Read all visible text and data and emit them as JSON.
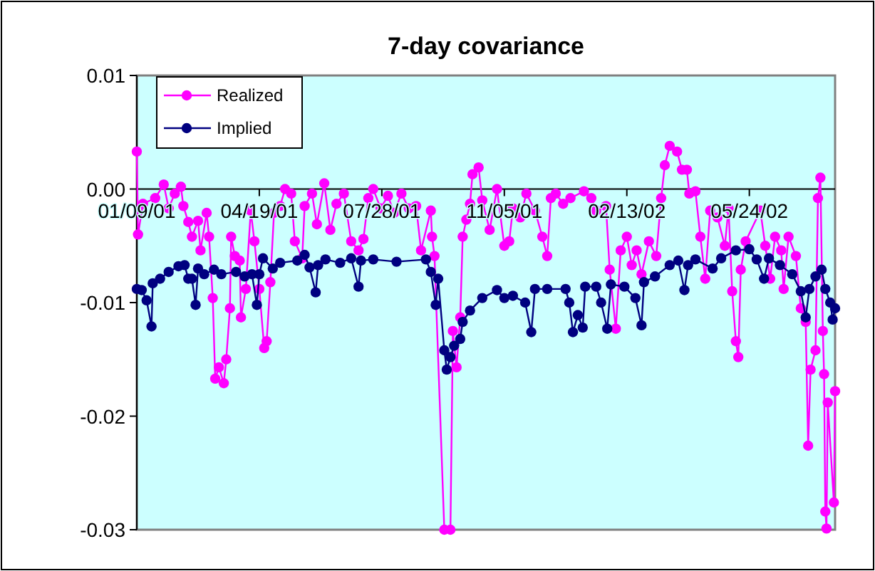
{
  "chart_data": {
    "type": "line",
    "title": "7-day covariance",
    "xlim": [
      "2001-01-09",
      "2002-08-02"
    ],
    "xticks": [
      {
        "value": "2001-01-09",
        "label": "01/09/01"
      },
      {
        "value": "2001-04-19",
        "label": "04/19/01"
      },
      {
        "value": "2001-07-28",
        "label": "07/28/01"
      },
      {
        "value": "2001-11-05",
        "label": "11/05/01"
      },
      {
        "value": "2002-02-13",
        "label": "02/13/02"
      },
      {
        "value": "2002-05-24",
        "label": "05/24/02"
      }
    ],
    "ylim": [
      -0.03,
      0.01
    ],
    "yticks": [
      0.01,
      {
        "value": 0,
        "label": "0.00"
      },
      -0.01,
      -0.02,
      -0.03
    ],
    "grid": false,
    "legend": "top left",
    "marker": "circle",
    "line_style": "solid",
    "series": [
      {
        "name": "Realized",
        "color": "#ff00ff",
        "x": [
          "2001-01-09",
          "2001-01-10",
          "2001-01-14",
          "2001-01-24",
          "2001-01-31",
          "2001-02-04",
          "2001-02-09",
          "2001-02-14",
          "2001-02-16",
          "2001-02-20",
          "2001-02-23",
          "2001-02-28",
          "2001-03-02",
          "2001-03-07",
          "2001-03-09",
          "2001-03-12",
          "2001-03-14",
          "2001-03-17",
          "2001-03-21",
          "2001-03-23",
          "2001-03-26",
          "2001-03-27",
          "2001-03-30",
          "2001-04-03",
          "2001-04-04",
          "2001-04-08",
          "2001-04-12",
          "2001-04-15",
          "2001-04-19",
          "2001-04-23",
          "2001-04-25",
          "2001-04-28",
          "2001-05-01",
          "2001-05-06",
          "2001-05-10",
          "2001-05-15",
          "2001-05-18",
          "2001-05-24",
          "2001-05-26",
          "2001-06-01",
          "2001-06-05",
          "2001-06-11",
          "2001-06-16",
          "2001-06-21",
          "2001-06-27",
          "2001-07-03",
          "2001-07-09",
          "2001-07-13",
          "2001-07-17",
          "2001-07-21",
          "2001-07-27",
          "2001-08-02",
          "2001-08-07",
          "2001-08-13",
          "2001-08-19",
          "2001-08-25",
          "2001-08-29",
          "2001-09-06",
          "2001-09-07",
          "2001-09-09",
          "2001-09-17",
          "2001-09-22",
          "2001-09-24",
          "2001-09-27",
          "2001-09-30",
          "2001-10-02",
          "2001-10-05",
          "2001-10-08",
          "2001-10-10",
          "2001-10-15",
          "2001-10-18",
          "2001-10-24",
          "2001-10-30",
          "2001-11-05",
          "2001-11-09",
          "2001-11-12",
          "2001-11-18",
          "2001-11-23",
          "2001-11-30",
          "2001-12-06",
          "2001-12-10",
          "2001-12-13",
          "2001-12-17",
          "2001-12-23",
          "2001-12-29",
          "2002-01-09",
          "2002-01-15",
          "2002-01-19",
          "2002-01-27",
          "2002-01-30",
          "2002-02-04",
          "2002-02-08",
          "2002-02-13",
          "2002-02-17",
          "2002-02-21",
          "2002-02-25",
          "2002-03-03",
          "2002-03-09",
          "2002-03-13",
          "2002-03-16",
          "2002-03-20",
          "2002-03-26",
          "2002-03-30",
          "2002-04-03",
          "2002-04-05",
          "2002-04-10",
          "2002-04-14",
          "2002-04-18",
          "2002-04-22",
          "2002-04-28",
          "2002-05-04",
          "2002-05-07",
          "2002-05-10",
          "2002-05-13",
          "2002-05-15",
          "2002-05-17",
          "2002-05-21",
          "2002-06-02",
          "2002-06-06",
          "2002-06-10",
          "2002-06-14",
          "2002-06-19",
          "2002-06-21",
          "2002-06-25",
          "2002-07-01",
          "2002-07-05",
          "2002-07-09",
          "2002-07-11",
          "2002-07-13",
          "2002-07-17",
          "2002-07-19",
          "2002-07-21",
          "2002-07-23",
          "2002-07-24",
          "2002-07-25",
          "2002-07-26",
          "2002-07-27",
          "2002-08-01",
          "2002-08-02"
        ],
        "values": [
          0.0033,
          -0.004,
          -0.0013,
          -0.0008,
          0.0004,
          -0.0017,
          -0.0004,
          0.0002,
          -0.0015,
          -0.0029,
          -0.0042,
          -0.0028,
          -0.0054,
          -0.0021,
          -0.0042,
          -0.0096,
          -0.0167,
          -0.0157,
          -0.0171,
          -0.015,
          -0.0105,
          -0.0042,
          -0.0059,
          -0.0063,
          -0.0113,
          -0.0088,
          -0.0019,
          -0.0046,
          -0.0088,
          -0.014,
          -0.0134,
          -0.0082,
          -0.0021,
          -0.0015,
          0,
          -0.0004,
          -0.0046,
          -0.0061,
          -0.0015,
          -0.0004,
          -0.0031,
          0.0005,
          -0.0036,
          -0.0013,
          -0.0004,
          -0.0046,
          -0.0054,
          -0.0044,
          -0.0008,
          0,
          -0.0017,
          -0.0006,
          -0.0021,
          -0.0004,
          -0.0017,
          -0.0015,
          -0.0054,
          -0.0019,
          -0.0042,
          -0.0059,
          -0.03,
          -0.03,
          -0.0125,
          -0.0157,
          -0.0113,
          -0.0042,
          -0.0027,
          -0.0013,
          0.0013,
          0.0019,
          -0.001,
          -0.0036,
          0,
          -0.005,
          -0.0046,
          -0.0017,
          -0.0025,
          -0.0004,
          -0.0019,
          -0.0042,
          -0.0059,
          -0.0008,
          -0.0004,
          -0.0013,
          -0.0008,
          -0.0002,
          -0.0008,
          -0.0019,
          -0.0015,
          -0.0071,
          -0.0123,
          -0.0054,
          -0.0042,
          -0.0067,
          -0.0054,
          -0.0075,
          -0.0046,
          -0.0059,
          -0.0008,
          0.0021,
          0.0038,
          0.0033,
          0.0017,
          0.0017,
          -0.0004,
          -0.0002,
          -0.0042,
          -0.0079,
          -0.0019,
          -0.0025,
          -0.005,
          -0.0017,
          -0.009,
          -0.0134,
          -0.0148,
          -0.0071,
          -0.0046,
          -0.0019,
          -0.005,
          -0.0079,
          -0.0042,
          -0.0054,
          -0.0088,
          -0.0042,
          -0.0059,
          -0.0105,
          -0.0117,
          -0.0226,
          -0.0159,
          -0.0142,
          -0.0008,
          0.001,
          -0.0125,
          -0.0163,
          -0.0284,
          -0.0299,
          -0.0188,
          -0.0276,
          -0.0178
        ]
      },
      {
        "name": "Implied",
        "color": "#000080",
        "x": [
          "2001-01-09",
          "2001-01-13",
          "2001-01-17",
          "2001-01-21",
          "2001-01-22",
          "2001-01-28",
          "2001-02-04",
          "2001-02-12",
          "2001-02-17",
          "2001-02-20",
          "2001-02-23",
          "2001-02-26",
          "2001-02-28",
          "2001-03-05",
          "2001-03-13",
          "2001-03-19",
          "2001-03-31",
          "2001-04-07",
          "2001-04-13",
          "2001-04-17",
          "2001-04-19",
          "2001-04-22",
          "2001-04-30",
          "2001-05-06",
          "2001-05-20",
          "2001-05-26",
          "2001-05-30",
          "2001-06-04",
          "2001-06-06",
          "2001-06-12",
          "2001-06-24",
          "2001-07-03",
          "2001-07-09",
          "2001-07-11",
          "2001-07-21",
          "2001-08-09",
          "2001-09-02",
          "2001-09-06",
          "2001-09-10",
          "2001-09-12",
          "2001-09-17",
          "2001-09-19",
          "2001-09-22",
          "2001-09-25",
          "2001-09-30",
          "2001-10-02",
          "2001-10-08",
          "2001-10-18",
          "2001-10-30",
          "2001-11-05",
          "2001-11-12",
          "2001-11-22",
          "2001-11-27",
          "2001-11-30",
          "2001-12-10",
          "2001-12-25",
          "2001-12-28",
          "2001-12-31",
          "2002-01-04",
          "2002-01-08",
          "2002-01-10",
          "2002-01-19",
          "2002-01-23",
          "2002-01-28",
          "2002-01-31",
          "2002-02-11",
          "2002-02-20",
          "2002-02-25",
          "2002-02-27",
          "2002-03-08",
          "2002-03-20",
          "2002-03-27",
          "2002-04-01",
          "2002-04-04",
          "2002-04-10",
          "2002-04-24",
          "2002-05-01",
          "2002-05-13",
          "2002-05-24",
          "2002-05-30",
          "2002-06-05",
          "2002-06-09",
          "2002-06-18",
          "2002-06-28",
          "2002-07-05",
          "2002-07-09",
          "2002-07-12",
          "2002-07-17",
          "2002-07-22",
          "2002-07-25",
          "2002-07-29",
          "2002-07-31",
          "2002-08-02"
        ],
        "values": [
          -0.0088,
          -0.0089,
          -0.0098,
          -0.0121,
          -0.0083,
          -0.0079,
          -0.0073,
          -0.0068,
          -0.0067,
          -0.0079,
          -0.0079,
          -0.0102,
          -0.007,
          -0.0075,
          -0.0071,
          -0.0075,
          -0.0073,
          -0.0077,
          -0.0075,
          -0.0102,
          -0.0075,
          -0.0061,
          -0.007,
          -0.0065,
          -0.0063,
          -0.0058,
          -0.0069,
          -0.0091,
          -0.0067,
          -0.0062,
          -0.0065,
          -0.0061,
          -0.0086,
          -0.0063,
          -0.0062,
          -0.0064,
          -0.0062,
          -0.0073,
          -0.0102,
          -0.0079,
          -0.0142,
          -0.0159,
          -0.0148,
          -0.0138,
          -0.0132,
          -0.0117,
          -0.0107,
          -0.0096,
          -0.0089,
          -0.0096,
          -0.0094,
          -0.01,
          -0.0126,
          -0.0088,
          -0.0088,
          -0.0088,
          -0.01,
          -0.0126,
          -0.0111,
          -0.0122,
          -0.0086,
          -0.0086,
          -0.01,
          -0.0123,
          -0.0084,
          -0.0086,
          -0.0096,
          -0.012,
          -0.0082,
          -0.0077,
          -0.0067,
          -0.0063,
          -0.0089,
          -0.0067,
          -0.0062,
          -0.007,
          -0.0061,
          -0.0054,
          -0.0053,
          -0.0062,
          -0.0079,
          -0.0061,
          -0.0067,
          -0.0075,
          -0.009,
          -0.0113,
          -0.0088,
          -0.0077,
          -0.0071,
          -0.0088,
          -0.01,
          -0.0115,
          -0.0105
        ]
      }
    ]
  }
}
